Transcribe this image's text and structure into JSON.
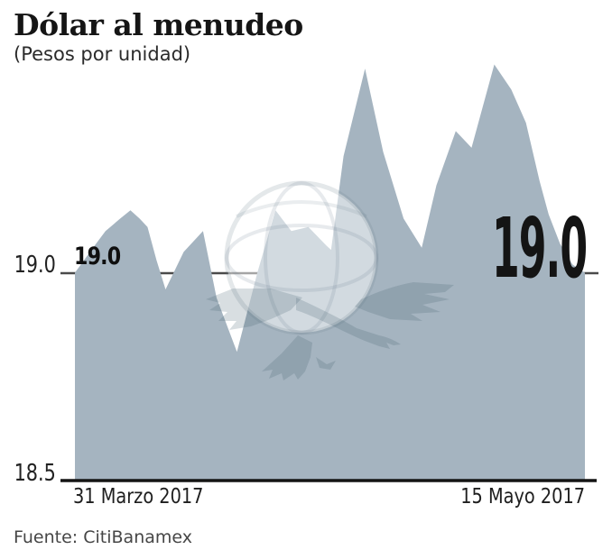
{
  "header": {
    "title": "Dólar al menudeo",
    "subtitle": "(Pesos por unidad)"
  },
  "footer": {
    "source": "Fuente: CitiBanamex"
  },
  "chart_data": {
    "type": "area",
    "title": "Dólar al menudeo",
    "subtitle": "(Pesos por unidad)",
    "xlabel": "",
    "ylabel": "Pesos por unidad",
    "x_domain": [
      0,
      45
    ],
    "x_tick_labels": {
      "start": "31 Marzo 2017",
      "end": "15 Mayo 2017"
    },
    "y_ticks": [
      {
        "value": 19.0,
        "label": "19.0"
      },
      {
        "value": 18.5,
        "label": "18.5"
      }
    ],
    "ylim": [
      18.5,
      19.55
    ],
    "grid": "single horizontal reference line at 19.0",
    "legend": "none",
    "annotations": {
      "first_value_label": "19.0",
      "last_value_label": "19.0"
    },
    "series": [
      {
        "name": "Dólar al menudeo (pesos por unidad)",
        "points": [
          [
            0,
            19.0
          ],
          [
            1.6,
            19.06
          ],
          [
            2.7,
            19.1
          ],
          [
            4.0,
            19.13
          ],
          [
            4.9,
            19.15
          ],
          [
            5.7,
            19.13
          ],
          [
            6.4,
            19.11
          ],
          [
            7.2,
            19.03
          ],
          [
            8.0,
            18.96
          ],
          [
            9.6,
            19.05
          ],
          [
            11.3,
            19.1
          ],
          [
            12.5,
            18.94
          ],
          [
            14.3,
            18.81
          ],
          [
            16.1,
            19.0
          ],
          [
            17.7,
            19.15
          ],
          [
            19.1,
            19.1
          ],
          [
            20.6,
            19.11
          ],
          [
            22.2,
            19.065
          ],
          [
            22.6,
            19.055
          ],
          [
            23.7,
            19.28
          ],
          [
            25.6,
            19.49
          ],
          [
            27.2,
            19.29
          ],
          [
            29.0,
            19.13
          ],
          [
            30.6,
            19.06
          ],
          [
            31.9,
            19.21
          ],
          [
            33.6,
            19.34
          ],
          [
            35.0,
            19.3
          ],
          [
            37.0,
            19.5
          ],
          [
            38.5,
            19.44
          ],
          [
            39.8,
            19.36
          ],
          [
            41.0,
            19.22
          ],
          [
            41.8,
            19.14
          ],
          [
            42.8,
            19.07
          ],
          [
            43.9,
            19.02
          ],
          [
            45,
            19.0
          ]
        ]
      }
    ],
    "colors": {
      "area_fill": "#a5b4c0",
      "grid_line": "#4a4a4a",
      "axis_line": "#141414",
      "watermark_dark": "rgba(62,88,105,0.20)",
      "watermark_light": "rgba(255,255,255,0.50)",
      "watermark_stroke": "rgba(105,125,140,0.18)"
    },
    "source": "Fuente: CitiBanamex",
    "watermark": "eagle-over-globe newspaper logo"
  }
}
